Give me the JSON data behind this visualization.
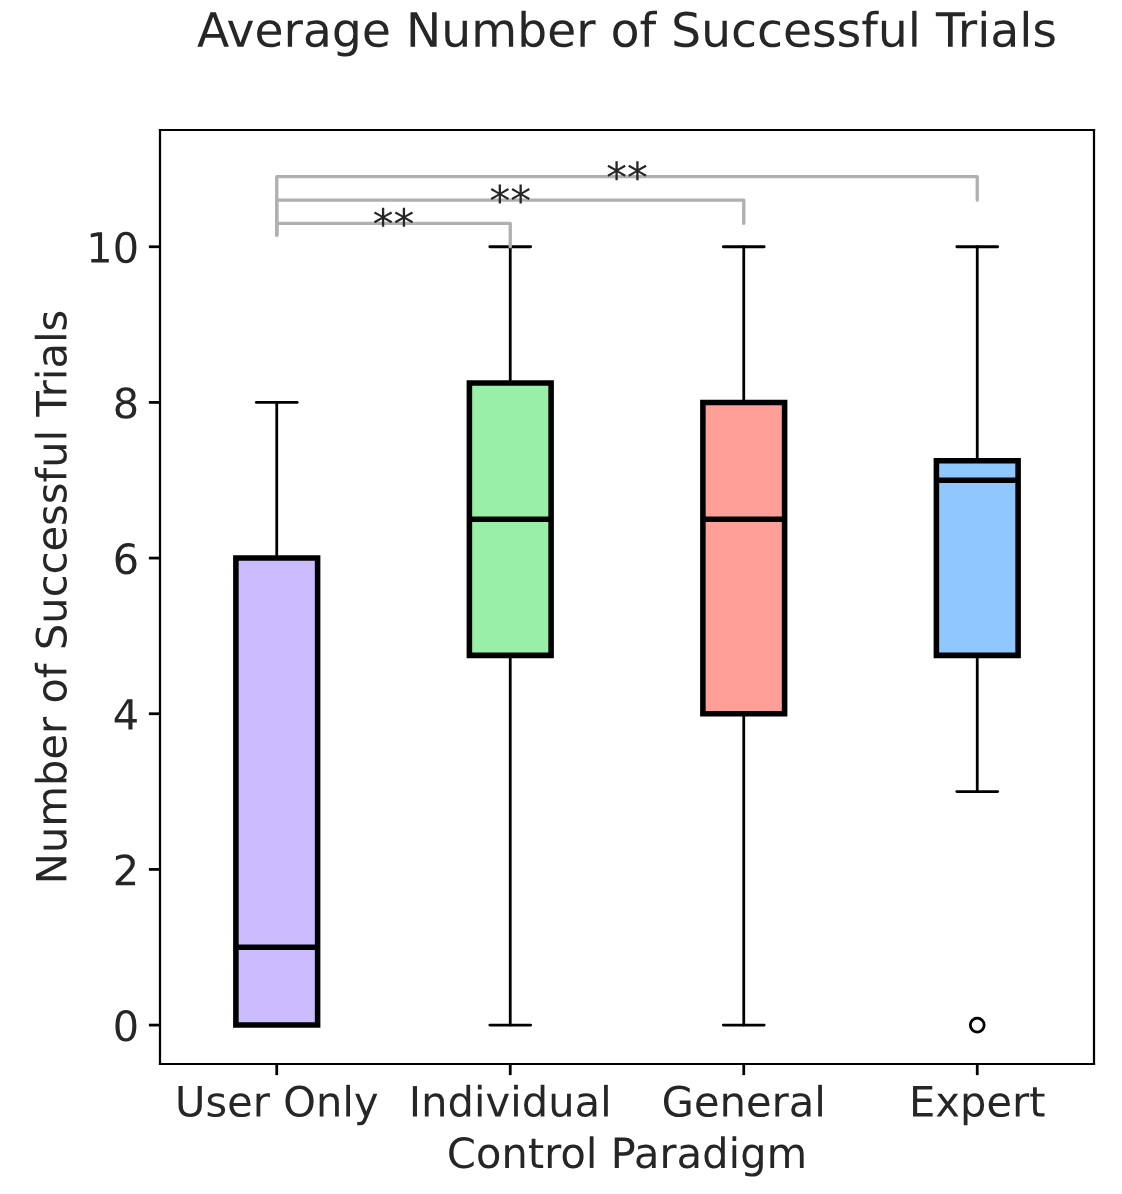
{
  "chart_data": {
    "type": "box",
    "title": "Average Number of Successful Trials",
    "xlabel": "Control Paradigm",
    "ylabel": "Number of Successful Trials",
    "categories": [
      "User Only",
      "Individual",
      "General",
      "Expert"
    ],
    "colors": [
      "#cbbcff",
      "#98f0a8",
      "#ff9f98",
      "#8fc7ff"
    ],
    "boxes": [
      {
        "low": 0,
        "q1": 0,
        "median": 1,
        "q3": 6,
        "high": 8
      },
      {
        "low": 0,
        "q1": 4.75,
        "median": 6.5,
        "q3": 8.25,
        "high": 10
      },
      {
        "low": 0,
        "q1": 4,
        "median": 6.5,
        "q3": 8,
        "high": 10
      },
      {
        "low": 3,
        "q1": 4.75,
        "median": 7,
        "q3": 7.25,
        "high": 10,
        "outliers": [
          0
        ]
      }
    ],
    "ylim": [
      -0.5,
      11.5
    ],
    "yticks": [
      0,
      2,
      4,
      6,
      8,
      10
    ],
    "grid": false,
    "legend": false,
    "annotations": [
      "**",
      "**",
      "**"
    ]
  }
}
